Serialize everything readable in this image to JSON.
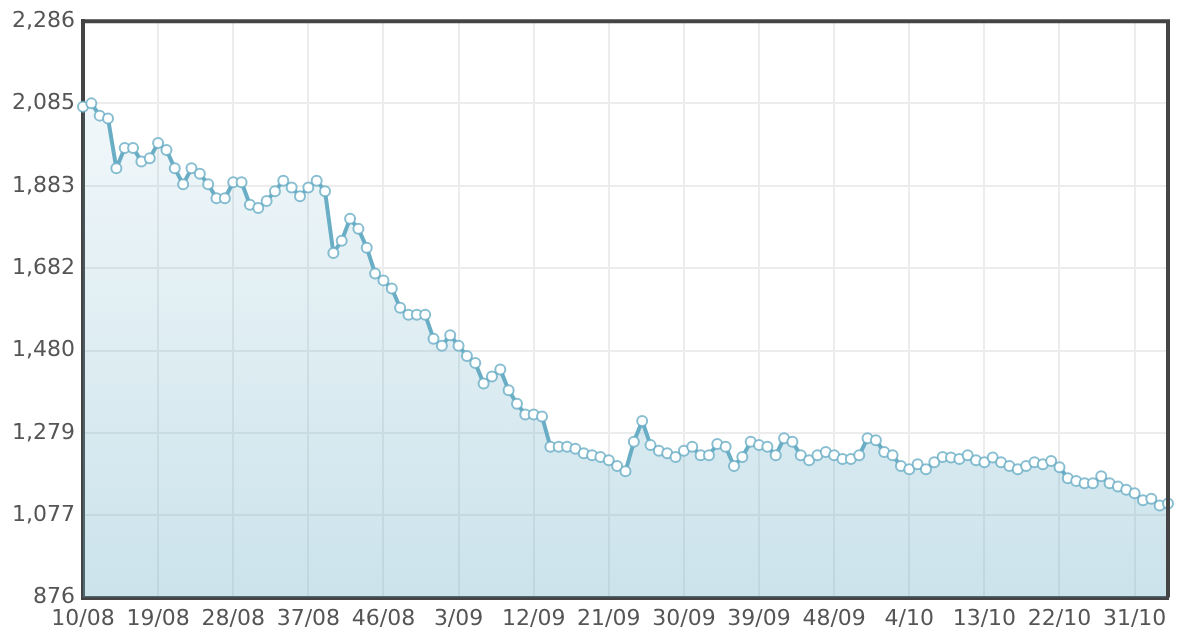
{
  "chart_data": {
    "type": "area",
    "categories": [
      "10/08",
      null,
      null,
      null,
      null,
      null,
      null,
      null,
      null,
      "19/08",
      null,
      null,
      null,
      null,
      null,
      null,
      null,
      null,
      "28/08",
      null,
      null,
      null,
      null,
      null,
      null,
      null,
      null,
      "37/08",
      null,
      null,
      null,
      null,
      null,
      null,
      null,
      null,
      "46/08",
      null,
      null,
      null,
      null,
      null,
      null,
      null,
      null,
      "3/09",
      null,
      null,
      null,
      null,
      null,
      null,
      null,
      null,
      "12/09",
      null,
      null,
      null,
      null,
      null,
      null,
      null,
      null,
      "21/09",
      null,
      null,
      null,
      null,
      null,
      null,
      null,
      null,
      "30/09",
      null,
      null,
      null,
      null,
      null,
      null,
      null,
      null,
      "39/09",
      null,
      null,
      null,
      null,
      null,
      null,
      null,
      null,
      "48/09",
      null,
      null,
      null,
      null,
      null,
      null,
      null,
      null,
      "4/10",
      null,
      null,
      null,
      null,
      null,
      null,
      null,
      null,
      "13/10",
      null,
      null,
      null,
      null,
      null,
      null,
      null,
      null,
      "22/10",
      null,
      null,
      null,
      null,
      null,
      null,
      null,
      null,
      "31/10",
      null,
      null,
      null,
      null
    ],
    "series": [
      {
        "color": "#6aaec6",
        "values": [
          2077,
          2085,
          2055,
          2048,
          1926,
          1976,
          1976,
          1943,
          1951,
          1988,
          1971,
          1926,
          1887,
          1926,
          1913,
          1887,
          1853,
          1853,
          1892,
          1892,
          1837,
          1829,
          1846,
          1870,
          1896,
          1879,
          1858,
          1879,
          1896,
          1870,
          1719,
          1749,
          1803,
          1778,
          1732,
          1669,
          1652,
          1632,
          1585,
          1568,
          1568,
          1568,
          1509,
          1492,
          1518,
          1492,
          1467,
          1450,
          1400,
          1417,
          1434,
          1383,
          1350,
          1324,
          1324,
          1319,
          1245,
          1245,
          1245,
          1240,
          1229,
          1224,
          1220,
          1212,
          1198,
          1185,
          1257,
          1308,
          1249,
          1235,
          1229,
          1220,
          1235,
          1245,
          1224,
          1224,
          1252,
          1245,
          1198,
          1220,
          1257,
          1249,
          1245,
          1224,
          1266,
          1257,
          1224,
          1212,
          1224,
          1232,
          1224,
          1215,
          1215,
          1224,
          1266,
          1261,
          1232,
          1224,
          1198,
          1190,
          1202,
          1190,
          1207,
          1220,
          1219,
          1215,
          1224,
          1212,
          1207,
          1219,
          1207,
          1198,
          1190,
          1198,
          1207,
          1202,
          1210,
          1195,
          1168,
          1161,
          1156,
          1156,
          1173,
          1156,
          1148,
          1140,
          1131,
          1114,
          1118,
          1101,
          1106
        ]
      }
    ],
    "ylim": [
      876,
      2286
    ],
    "yticks": [
      876,
      {
        "value": 1077,
        "label": "1,077"
      },
      {
        "value": 1279,
        "label": "1,279"
      },
      {
        "value": 1480,
        "label": "1,480"
      },
      {
        "value": 1682,
        "label": "1,682"
      },
      {
        "value": 1883,
        "label": "1,883"
      },
      {
        "value": 2085,
        "label": "2,085"
      },
      {
        "value": 2286,
        "label": "2,286"
      }
    ],
    "grid": true,
    "legend": false,
    "marker": "circle",
    "line_style": "solid"
  }
}
